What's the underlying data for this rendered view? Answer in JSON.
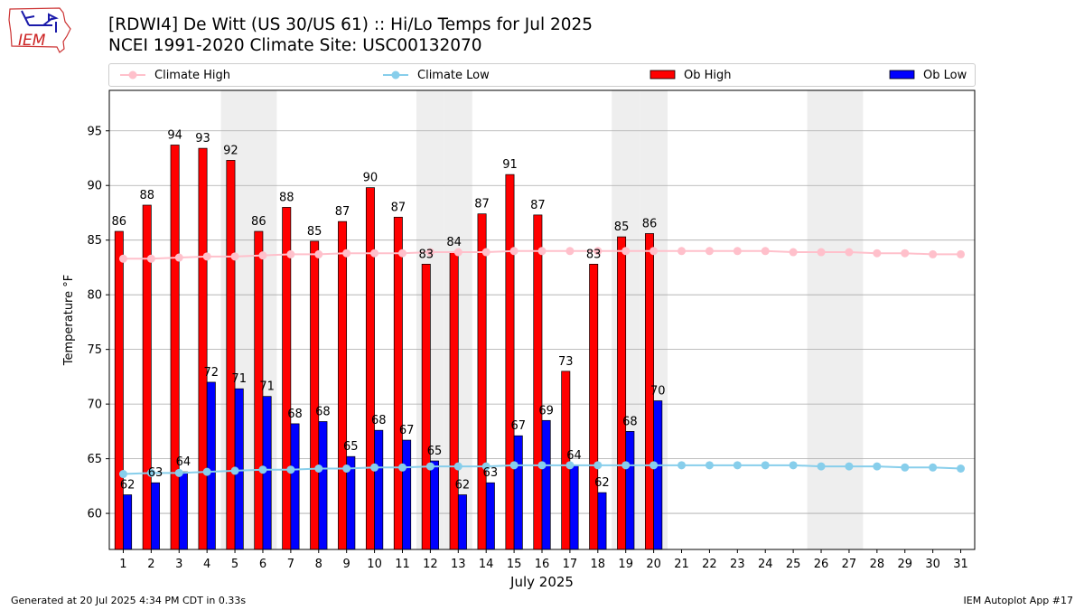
{
  "logo_text": "IEM",
  "title_line1": "[RDWI4] De Witt (US 30/US 61) :: Hi/Lo Temps for Jul 2025",
  "title_line2": "NCEI 1991-2020 Climate Site: USC00132070",
  "footer_left": "Generated at 20 Jul 2025 4:34 PM CDT in 0.33s",
  "footer_right": "IEM Autoplot App #17",
  "legend": [
    {
      "label": "Climate High",
      "color": "#ffc0cb",
      "kind": "line"
    },
    {
      "label": "Climate Low",
      "color": "#87ceeb",
      "kind": "line"
    },
    {
      "label": "Ob High",
      "color": "#ff0000",
      "kind": "bar"
    },
    {
      "label": "Ob Low",
      "color": "#0000ff",
      "kind": "bar"
    }
  ],
  "chart_data": {
    "type": "bar",
    "xlabel": "July 2025",
    "ylabel": "Temperature °F",
    "xlim": [
      0.5,
      31.5
    ],
    "ylim": [
      56.7,
      98.7
    ],
    "yticks": [
      60,
      65,
      70,
      75,
      80,
      85,
      90,
      95
    ],
    "days": [
      1,
      2,
      3,
      4,
      5,
      6,
      7,
      8,
      9,
      10,
      11,
      12,
      13,
      14,
      15,
      16,
      17,
      18,
      19,
      20,
      21,
      22,
      23,
      24,
      25,
      26,
      27,
      28,
      29,
      30,
      31
    ],
    "weekend_days": [
      5,
      6,
      12,
      13,
      19,
      20,
      26,
      27
    ],
    "grid": true,
    "colors": {
      "ob_high": "#ff0000",
      "ob_low": "#0000ff",
      "climate_high": "#ffc0cb",
      "climate_low": "#87ceeb",
      "weekend": "#eeeeee",
      "grid": "#aaaaaa"
    },
    "series": [
      {
        "name": "Ob High",
        "values": [
          85.8,
          88.2,
          93.7,
          93.4,
          92.3,
          85.8,
          88.0,
          84.9,
          86.7,
          89.8,
          87.1,
          82.8,
          83.9,
          87.4,
          91.0,
          87.3,
          73.0,
          82.8,
          85.3,
          85.6
        ]
      },
      {
        "name": "Ob Low",
        "values": [
          61.7,
          62.8,
          63.8,
          72.0,
          71.4,
          70.7,
          68.2,
          68.4,
          65.2,
          67.6,
          66.7,
          64.8,
          61.7,
          62.8,
          67.1,
          68.5,
          64.4,
          61.9,
          67.5,
          70.3
        ]
      },
      {
        "name": "Climate High",
        "values": [
          83.3,
          83.3,
          83.4,
          83.5,
          83.5,
          83.6,
          83.7,
          83.7,
          83.8,
          83.8,
          83.8,
          83.9,
          83.9,
          83.9,
          84.0,
          84.0,
          84.0,
          84.0,
          84.0,
          84.0,
          84.0,
          84.0,
          84.0,
          84.0,
          83.9,
          83.9,
          83.9,
          83.8,
          83.8,
          83.7,
          83.7
        ]
      },
      {
        "name": "Climate Low",
        "values": [
          63.6,
          63.7,
          63.7,
          63.8,
          63.9,
          64.0,
          64.0,
          64.1,
          64.1,
          64.2,
          64.2,
          64.3,
          64.3,
          64.3,
          64.4,
          64.4,
          64.4,
          64.4,
          64.4,
          64.4,
          64.4,
          64.4,
          64.4,
          64.4,
          64.4,
          64.3,
          64.3,
          64.3,
          64.2,
          64.2,
          64.1
        ]
      }
    ]
  }
}
